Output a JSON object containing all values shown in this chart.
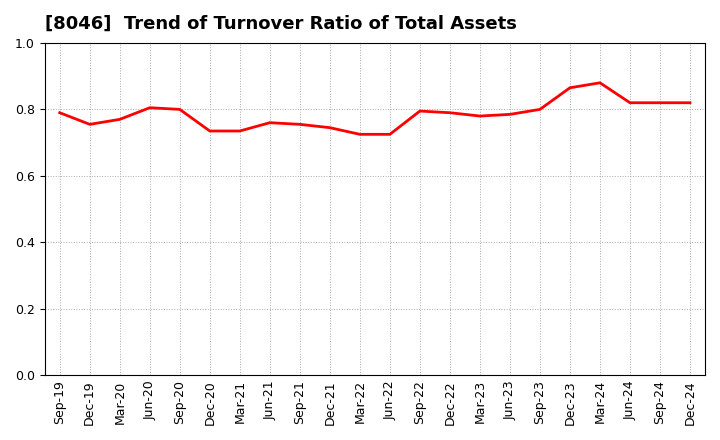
{
  "title": "[8046]  Trend of Turnover Ratio of Total Assets",
  "labels": [
    "Sep-19",
    "Dec-19",
    "Mar-20",
    "Jun-20",
    "Sep-20",
    "Dec-20",
    "Mar-21",
    "Jun-21",
    "Sep-21",
    "Dec-21",
    "Mar-22",
    "Jun-22",
    "Sep-22",
    "Dec-22",
    "Mar-23",
    "Jun-23",
    "Sep-23",
    "Dec-23",
    "Mar-24",
    "Jun-24",
    "Sep-24",
    "Dec-24"
  ],
  "values": [
    0.79,
    0.755,
    0.77,
    0.805,
    0.8,
    0.735,
    0.735,
    0.76,
    0.755,
    0.745,
    0.725,
    0.725,
    0.795,
    0.79,
    0.78,
    0.785,
    0.8,
    0.865,
    0.88,
    0.82,
    0.82,
    0.82
  ],
  "line_color": "#ff0000",
  "line_width": 2.0,
  "ylim": [
    0.0,
    1.0
  ],
  "yticks": [
    0.0,
    0.2,
    0.4,
    0.6,
    0.8,
    1.0
  ],
  "background_color": "#ffffff",
  "grid_color": "#aaaaaa",
  "title_fontsize": 13,
  "tick_fontsize": 9
}
